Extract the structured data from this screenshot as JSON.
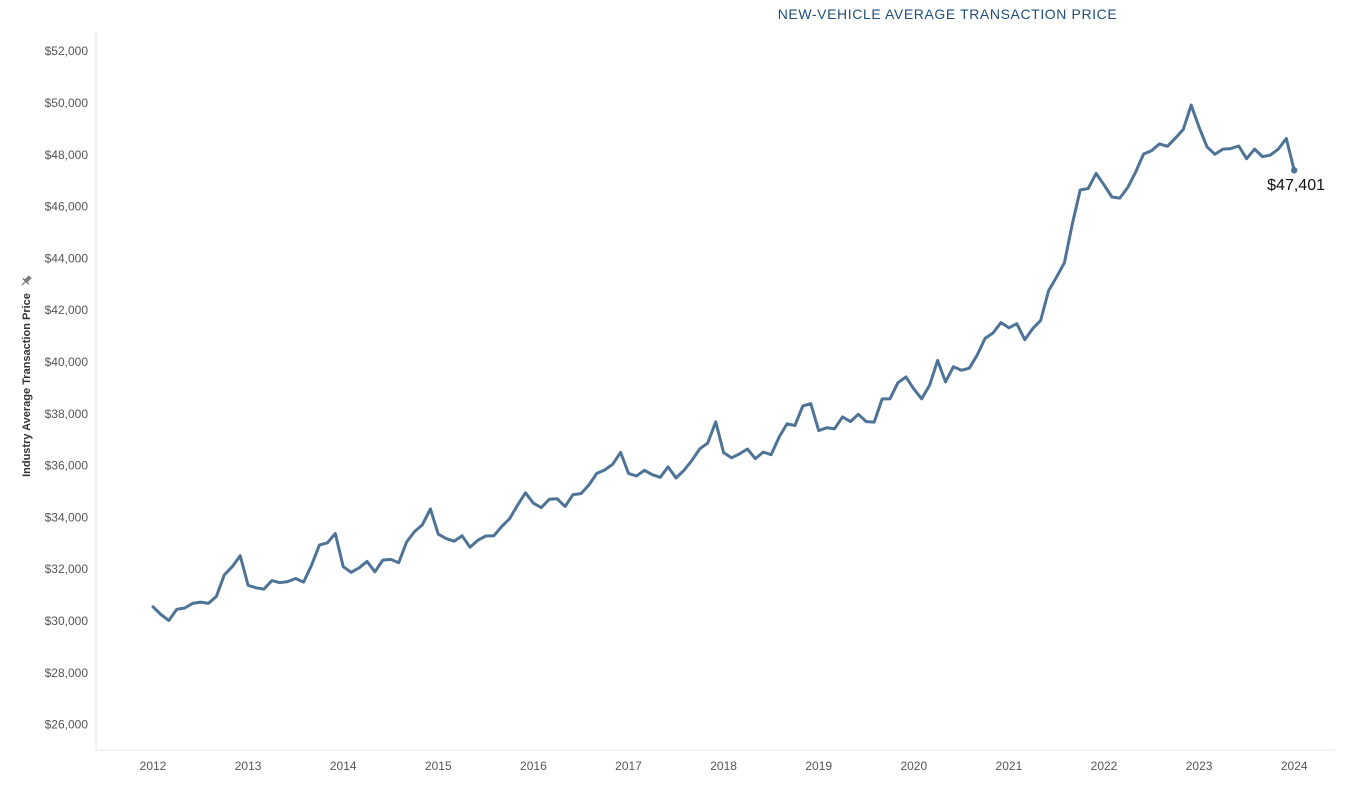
{
  "colors": {
    "line": "#4e7397",
    "title": "#1f4e79",
    "axis_text": "#555555",
    "axis_line": "#e6e6e6"
  },
  "icons": {
    "pin": "pin-icon"
  },
  "chart_data": {
    "type": "line",
    "title": "NEW-VEHICLE AVERAGE TRANSACTION PRICE",
    "xlabel": "",
    "ylabel": "Industry Average Transaction Price",
    "ylim": [
      25400,
      52500
    ],
    "grid": false,
    "x_ticks": [
      "2012",
      "2013",
      "2014",
      "2015",
      "2016",
      "2017",
      "2018",
      "2019",
      "2020",
      "2021",
      "2022",
      "2023",
      "2024"
    ],
    "y_ticks": [
      "$26,000",
      "$28,000",
      "$30,000",
      "$32,000",
      "$34,000",
      "$36,000",
      "$38,000",
      "$40,000",
      "$42,000",
      "$44,000",
      "$46,000",
      "$48,000",
      "$50,000",
      "$52,000"
    ],
    "y_tick_values": [
      26000,
      28000,
      30000,
      32000,
      34000,
      36000,
      38000,
      40000,
      42000,
      44000,
      46000,
      48000,
      50000,
      52000
    ],
    "end_label": "$47,401",
    "series": [
      {
        "values": [
          30550,
          30250,
          30020,
          30450,
          30500,
          30680,
          30730,
          30680,
          30950,
          31780,
          32100,
          32520,
          31380,
          31280,
          31230,
          31560,
          31480,
          31520,
          31640,
          31500,
          32150,
          32930,
          33020,
          33380,
          32100,
          31880,
          32050,
          32300,
          31900,
          32350,
          32380,
          32250,
          33050,
          33450,
          33720,
          34330,
          33350,
          33180,
          33080,
          33290,
          32850,
          33120,
          33280,
          33290,
          33650,
          33950,
          34470,
          34950,
          34550,
          34380,
          34700,
          34720,
          34420,
          34880,
          34920,
          35250,
          35700,
          35830,
          36050,
          36510,
          35700,
          35600,
          35820,
          35650,
          35550,
          35950,
          35520,
          35820,
          36200,
          36650,
          36870,
          37690,
          36500,
          36300,
          36450,
          36640,
          36270,
          36520,
          36420,
          37100,
          37610,
          37550,
          38300,
          38390,
          37350,
          37460,
          37420,
          37880,
          37700,
          37980,
          37700,
          37680,
          38570,
          38580,
          39200,
          39420,
          38960,
          38580,
          39100,
          40060,
          39230,
          39820,
          39680,
          39760,
          40270,
          40910,
          41120,
          41520,
          41320,
          41480,
          40860,
          41290,
          41600,
          42740,
          43270,
          43830,
          45330,
          46640,
          46700,
          47280,
          46840,
          46370,
          46330,
          46740,
          47340,
          48030,
          48160,
          48420,
          48330,
          48640,
          48980,
          49920,
          49060,
          48310,
          48020,
          48220,
          48240,
          48340,
          47850,
          48220,
          47930,
          47990,
          48220,
          48630,
          47401
        ]
      }
    ]
  }
}
